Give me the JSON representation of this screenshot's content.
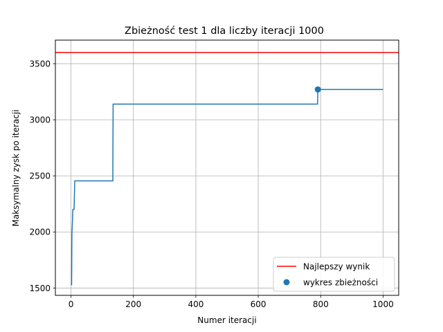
{
  "chart_data": {
    "type": "line",
    "title": "Zbieżność test 1 dla liczby iteracji 1000",
    "xlabel": "Numer iteracji",
    "ylabel": "Maksymalny zysk po iteracji",
    "xlim": [
      -50,
      1050
    ],
    "ylim": [
      1435,
      3710
    ],
    "xticks": [
      0,
      200,
      400,
      600,
      800,
      1000
    ],
    "yticks": [
      1500,
      2000,
      2500,
      3000,
      3500
    ],
    "grid": true,
    "legend_position": "lower-right",
    "series": [
      {
        "name": "wykres zbieżności",
        "kind": "step-line",
        "color": "#1f77b4",
        "x": [
          0,
          2,
          3,
          4,
          6,
          8,
          10,
          12,
          134,
          135,
          790,
          791,
          1000
        ],
        "y": [
          1530,
          1530,
          1990,
          2050,
          2200,
          2200,
          2200,
          2455,
          2455,
          3140,
          3140,
          3270,
          3270
        ]
      },
      {
        "name": "wykres zbieżności",
        "kind": "scatter",
        "color": "#1f77b4",
        "x": [
          791
        ],
        "y": [
          3270
        ]
      },
      {
        "name": "Najlepszy wynik",
        "kind": "hline",
        "color": "#ff0000",
        "y": 3600
      }
    ],
    "legend": [
      {
        "label": "Najlepszy wynik",
        "marker": "line",
        "color": "#ff0000"
      },
      {
        "label": "wykres zbieżności",
        "marker": "dot",
        "color": "#1f77b4"
      }
    ]
  }
}
